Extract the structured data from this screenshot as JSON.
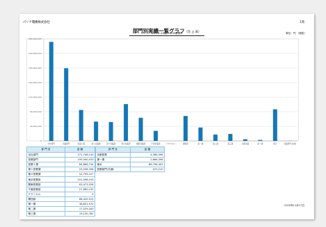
{
  "header": {
    "company": "パソナ電機株式会社",
    "page_no": "1頁",
    "title": "部門別実績一覧グラフ",
    "title_suffix": "（売 上 高）",
    "period": "2020年 4月度～10月度累計",
    "unit": "単位：円 （税抜）"
  },
  "chart_data": {
    "type": "bar",
    "categories": [
      "全社部門",
      "営業部門",
      "営業１課",
      "第１営業課",
      "第２営業課",
      "東京営業部",
      "関東営業部",
      "千葉営業部",
      "テクニカル",
      "関西部",
      "第一課",
      "第二課",
      "第三課",
      "京都営業",
      "第一課",
      "東京",
      "営業部門(共通)"
    ],
    "values": [
      271748143,
      199390533,
      84868734,
      53038296,
      51795107,
      101098193,
      63473528,
      27660135,
      0,
      68420515,
      36821570,
      17529163,
      19130782,
      4586398,
      2666398,
      86796402,
      470210
    ],
    "ylim": [
      0,
      280000000
    ],
    "ytick_labels": [
      "0",
      "40,000,000",
      "80,000,000",
      "120,000,000",
      "160,000,000",
      "200,000,000",
      "240,000,000",
      "280,000,000"
    ],
    "grid": true,
    "legend": "none"
  },
  "table": {
    "header_name": "部 門 名",
    "header_amount": "金 額",
    "amounts": [
      "271,748,143",
      "199,390,533",
      "84,868,734",
      "53,038,296",
      "51,795,107",
      "101,098,193",
      "63,473,528",
      "27,660,135",
      "0",
      "68,420,515",
      "36,821,570",
      "17,529,163",
      "19,130,782",
      "4,586,398",
      "2,666,398",
      "86,796,402",
      "470,210"
    ]
  },
  "footer": {
    "date": "2020年11月17日"
  },
  "colors": {
    "bar": "#1577b6",
    "table_header_bg": "#d4ebf7",
    "table_border": "#3d8ec6"
  }
}
